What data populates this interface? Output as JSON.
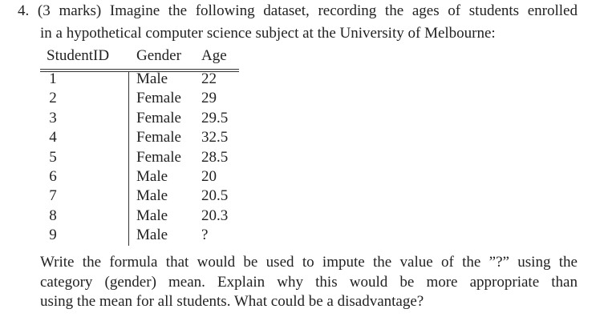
{
  "question": {
    "intro_lines": [
      "4. (3 marks) Imagine the following dataset, recording the ages of students enrolled",
      "in a hypothetical computer science subject at the University of Melbourne:"
    ],
    "table": {
      "headers": [
        "StudentID",
        "Gender",
        "Age"
      ],
      "rows": [
        [
          "1",
          "Male",
          "22"
        ],
        [
          "2",
          "Female",
          "29"
        ],
        [
          "3",
          "Female",
          "29.5"
        ],
        [
          "4",
          "Female",
          "32.5"
        ],
        [
          "5",
          "Female",
          "28.5"
        ],
        [
          "6",
          "Male",
          "20"
        ],
        [
          "7",
          "Male",
          "20.5"
        ],
        [
          "8",
          "Male",
          "20.3"
        ],
        [
          "9",
          "Male",
          "?"
        ]
      ]
    },
    "prompt_lines": [
      "Write the formula that would be used to impute the value of the ”?” using the",
      "category (gender) mean. Explain why this would be more appropriate than",
      "using the mean for all students. What could be a disadvantage?"
    ]
  }
}
